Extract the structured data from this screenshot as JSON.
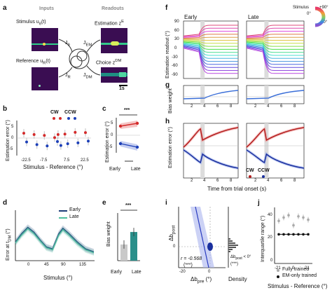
{
  "panel_a": {
    "letter": "a",
    "inputs_header": "Inputs",
    "readouts_header": "Readouts",
    "stimulus_label": "Stimulus u",
    "stimulus_sub": "θ",
    "stimulus_arg": "(t)",
    "reference_label": "Reference u",
    "reference_sub": "R",
    "reference_arg": "(t)",
    "estimation_label": "Estimation z",
    "estimation_sup": "E",
    "choice_label": "Choice z",
    "choice_sup": "DM",
    "j_theta": "J",
    "j_theta_sub": "θ",
    "j_r": "J",
    "j_r_sub": "R",
    "j_em": "J",
    "j_em_sub": "EM",
    "j_dm": "J",
    "j_dm_sub": "DM",
    "scale_bar": "1s",
    "colors": {
      "heat_bg": "#3a0d52",
      "heat_line": "#2fd08a",
      "heat_dot": "#f4e24a"
    }
  },
  "panel_b": {
    "letter": "b",
    "ylabel": "Estimation error (°)",
    "xlabel": "Stimulus - Reference (°)",
    "legend": [
      "CW",
      "CCW"
    ],
    "colors": {
      "cw": "#d42a2a",
      "ccw": "#1c3fb8"
    },
    "chart_data": {
      "type": "scatter",
      "categories": [
        "-22.5",
        "-7.5",
        "7.5",
        "22.5"
      ],
      "yticks": [
        "5",
        "0",
        "-5"
      ],
      "ylim": [
        -8,
        8
      ],
      "series": [
        {
          "name": "CW",
          "points": [
            [
              -22.5,
              2.2
            ],
            [
              -15,
              1.6
            ],
            [
              -7.5,
              1.2
            ],
            [
              0,
              0.2
            ],
            [
              2.5,
              1.6
            ],
            [
              7.5,
              1.8
            ],
            [
              15,
              2.6
            ],
            [
              22.5,
              2.5
            ]
          ]
        },
        {
          "name": "CCW",
          "points": [
            [
              -22.5,
              -1.8
            ],
            [
              -15,
              -3.0
            ],
            [
              -7.5,
              -3.6
            ],
            [
              0,
              -1.6
            ],
            [
              2.5,
              -3.4
            ],
            [
              7.5,
              -2.6
            ],
            [
              15,
              -2.2
            ],
            [
              22.5,
              -1.4
            ]
          ]
        }
      ]
    }
  },
  "panel_c": {
    "letter": "c",
    "ylabel": "Estimation error (°)",
    "significance": "***",
    "xticks": [
      "Early",
      "Late"
    ],
    "yticks": [
      "5",
      "0",
      "-5"
    ]
  },
  "panel_d": {
    "letter": "d",
    "ylabel": "Error at t",
    "ylabel_sub": "DM",
    "ylabel_unit": " (°)",
    "xlabel": "Stimulus (°)",
    "legend": [
      "Early",
      "Late"
    ],
    "colors": {
      "early": "#1d3c78",
      "late": "#4fbf9f"
    },
    "chart_data": {
      "type": "line",
      "xlim": [
        -15,
        175
      ],
      "ylim": [
        0,
        1
      ],
      "xticks": [
        "0",
        "45",
        "90",
        "135"
      ],
      "series": [
        {
          "name": "Early",
          "x": [
            -15,
            0,
            15,
            30,
            45,
            60,
            75,
            90,
            100,
            115,
            135,
            155,
            175
          ],
          "y": [
            0.38,
            0.55,
            0.68,
            0.58,
            0.42,
            0.28,
            0.24,
            0.55,
            0.66,
            0.55,
            0.38,
            0.24,
            0.18
          ]
        },
        {
          "name": "Late",
          "x": [
            -15,
            0,
            15,
            30,
            45,
            60,
            75,
            90,
            100,
            115,
            135,
            155,
            175
          ],
          "y": [
            0.36,
            0.52,
            0.65,
            0.55,
            0.4,
            0.26,
            0.22,
            0.52,
            0.63,
            0.52,
            0.35,
            0.22,
            0.16
          ]
        }
      ]
    }
  },
  "panel_e": {
    "letter": "e",
    "ylabel": "Bias weight",
    "significance": "***",
    "xticks": [
      "Early",
      "Late"
    ],
    "chart_data": {
      "type": "bar",
      "categories": [
        "Early",
        "Late"
      ],
      "values": [
        0.35,
        0.62
      ],
      "ylim": [
        0,
        1
      ]
    }
  },
  "panel_f": {
    "letter": "f",
    "ylabel": "Estimation readout (°)",
    "titles": [
      "Early",
      "Late"
    ],
    "yticks": [
      "90",
      "60",
      "30",
      "0",
      "-30",
      "-60",
      "-90"
    ],
    "stimulus_legend": {
      "title": "Stimulus",
      "top": "+90°",
      "mid": "0°",
      "bottom": "-90°"
    }
  },
  "panel_g": {
    "letter": "g",
    "ylabel": "Bias weight",
    "xticks": [
      "2",
      "4",
      "6",
      "8"
    ]
  },
  "panel_h": {
    "letter": "h",
    "ylabel": "Estimation error (°)",
    "xlabel": "Time from trial onset (s)",
    "legend": [
      "CW",
      "CCW"
    ],
    "xticks": [
      "2",
      "4",
      "6",
      "8"
    ],
    "colors": {
      "cw": "#b31d1d",
      "ccw": "#1a2f9e"
    }
  },
  "panel_i": {
    "letter": "i",
    "ylabel": "Δb",
    "ylabel_sub": "post",
    "xlabel": "Δb",
    "xlabel_sub": "pre",
    "xlabel_unit": " (°)",
    "xticks": [
      "-20",
      "0"
    ],
    "yticks": [
      "0"
    ],
    "r_text": "r = -0.568",
    "r_sig": "(***)",
    "density_label": "Density",
    "density_note": "Δb",
    "density_note_sub": "post",
    "density_note_tail": " < 0°",
    "density_sig": "(***)"
  },
  "panel_j": {
    "letter": "j",
    "ylabel": "Interquartile range (°)",
    "xlabel": "Stimulus - Reference (°)",
    "xticks": [
      "-21",
      "0",
      "21"
    ],
    "yticks": [
      "40",
      "20",
      "0"
    ],
    "legend": [
      "Fully trained",
      "EM-only trained"
    ],
    "chart_data": {
      "type": "scatter",
      "ylim": [
        0,
        50
      ],
      "series": [
        {
          "name": "Fully trained",
          "x": [
            -21,
            -14,
            -7,
            0,
            7,
            14,
            21
          ],
          "y": [
            38,
            41,
            43,
            34,
            42,
            41,
            39
          ]
        },
        {
          "name": "EM-only trained",
          "x": [
            -21,
            -14,
            -7,
            0,
            7,
            14,
            21
          ],
          "y": [
            26,
            26,
            26,
            26,
            26,
            26,
            26
          ]
        }
      ]
    }
  }
}
